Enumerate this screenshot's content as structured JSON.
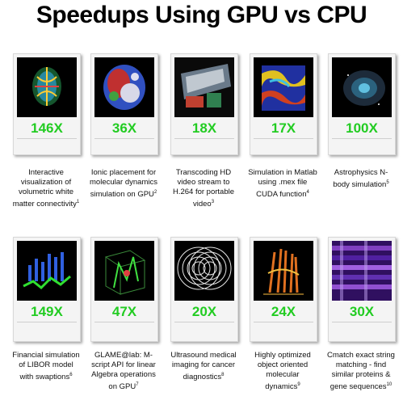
{
  "title": "Speedups Using GPU vs CPU",
  "row1": [
    {
      "speedup": "146X",
      "desc": "Interactive visualization of volumetric white matter connectivity",
      "ref": "1",
      "icon": "brain-connectivity-image"
    },
    {
      "speedup": "36X",
      "desc": "Ionic placement for molecular dynamics simulation on GPU",
      "ref": "2",
      "icon": "molecule-image"
    },
    {
      "speedup": "18X",
      "desc": "Transcoding HD video stream to H.264 for portable video",
      "ref": "3",
      "icon": "video-transcoding-image"
    },
    {
      "speedup": "17X",
      "desc": "Simulation in Matlab using .mex file CUDA function",
      "ref": "4",
      "icon": "matlab-heatmap-image"
    },
    {
      "speedup": "100X",
      "desc": "Astrophysics N-body simulation",
      "ref": "5",
      "icon": "galaxy-image"
    }
  ],
  "row2": [
    {
      "speedup": "149X",
      "desc": "Financial simulation of LIBOR model with swaptions",
      "ref": "6",
      "icon": "financial-chart-image"
    },
    {
      "speedup": "47X",
      "desc": "GLAME@lab: M-script API for linear Algebra operations on GPU",
      "ref": "7",
      "icon": "linear-algebra-image"
    },
    {
      "speedup": "20X",
      "desc": "Ultrasound medical imaging for cancer diagnostics",
      "ref": "8",
      "icon": "ultrasound-image"
    },
    {
      "speedup": "24X",
      "desc": "Highly optimized object oriented molecular dynamics",
      "ref": "9",
      "icon": "molecular-dynamics-image"
    },
    {
      "speedup": "30X",
      "desc": "Cmatch exact string matching - find similar proteins & gene sequences",
      "ref": "10",
      "icon": "string-matching-image"
    }
  ],
  "colors": {
    "speedup": "#22cc22",
    "card": "#f4f4f4"
  }
}
